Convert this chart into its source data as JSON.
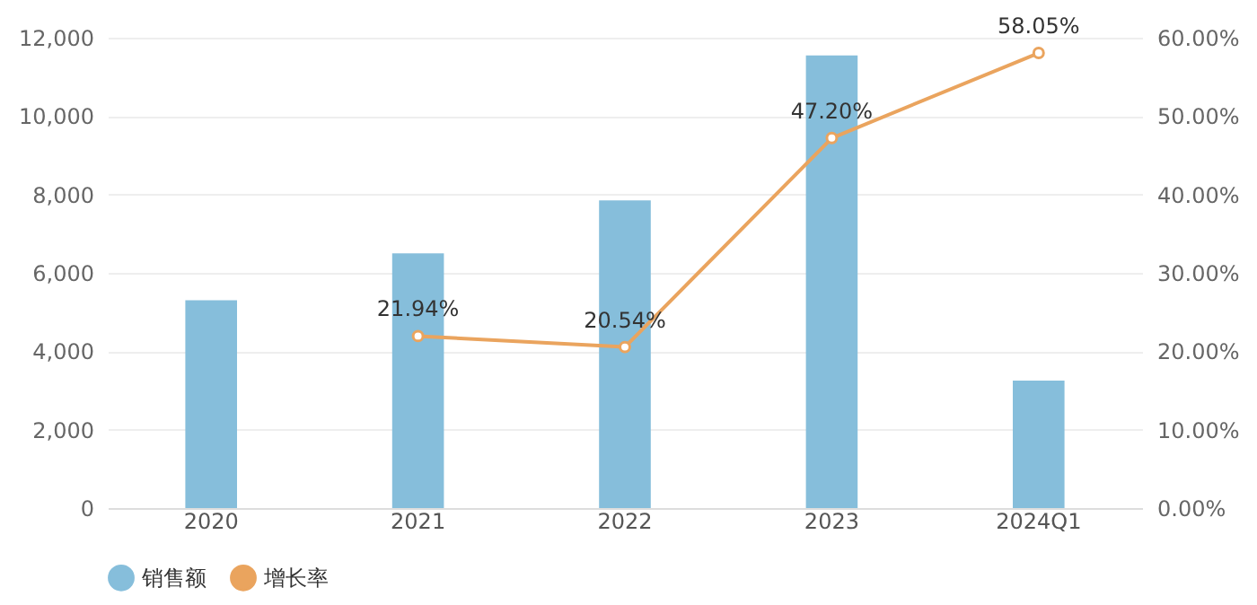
{
  "chart_data": {
    "type": "bar",
    "categories": [
      "2020",
      "2021",
      "2022",
      "2023",
      "2024Q1"
    ],
    "series": [
      {
        "name": "销售额",
        "color": "#86bedb",
        "values": [
          5300,
          6500,
          7850,
          11550,
          3250
        ]
      },
      {
        "name": "增长率",
        "type": "line",
        "axis": "y2",
        "color": "#eaa45e",
        "values": [
          null,
          21.94,
          20.54,
          47.2,
          58.05
        ],
        "value_labels": [
          null,
          "21.94%",
          "20.54%",
          "47.20%",
          "58.05%"
        ]
      }
    ],
    "ylim": [
      0,
      12000
    ],
    "yticks": [
      0,
      {
        "value": 2000,
        "label": "2,000"
      },
      {
        "value": 4000,
        "label": "4,000"
      },
      {
        "value": 6000,
        "label": "6,000"
      },
      {
        "value": 8000,
        "label": "8,000"
      },
      {
        "value": 10000,
        "label": "10,000"
      },
      {
        "value": 12000,
        "label": "12,000"
      }
    ],
    "y2lim": [
      0,
      60
    ],
    "y2ticks": [
      {
        "value": 0,
        "label": "0.00%"
      },
      {
        "value": 10,
        "label": "10.00%"
      },
      {
        "value": 20,
        "label": "20.00%"
      },
      {
        "value": 30,
        "label": "30.00%"
      },
      {
        "value": 40,
        "label": "40.00%"
      },
      {
        "value": 50,
        "label": "50.00%"
      },
      {
        "value": 60,
        "label": "60.00%"
      }
    ],
    "grid": "y",
    "legend": "bottom",
    "marker": "circle",
    "line_style": "solid"
  }
}
